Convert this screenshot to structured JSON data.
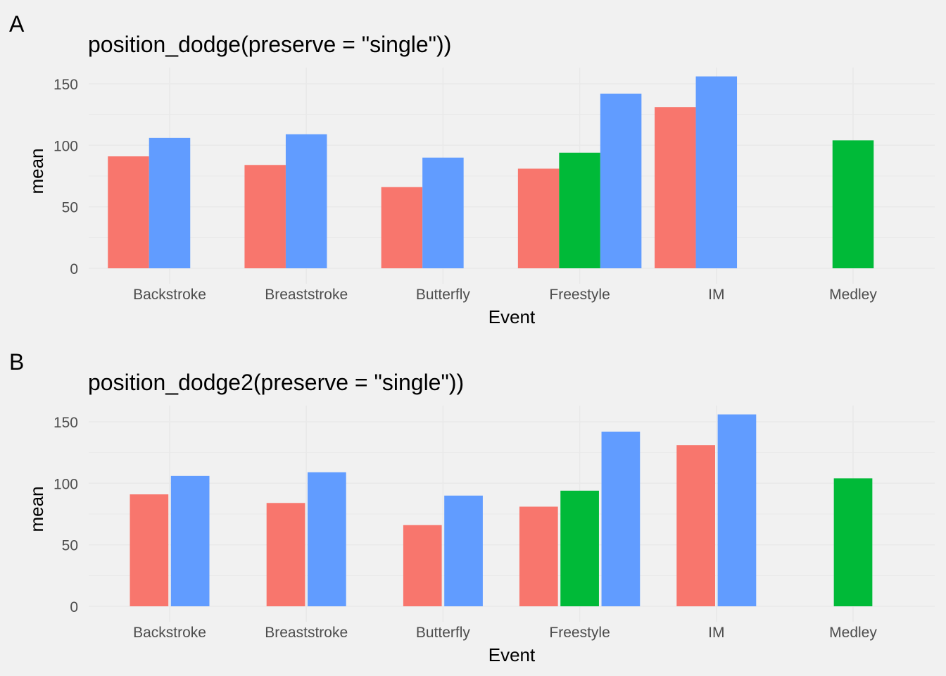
{
  "colors": {
    "background": "#f1f1f1",
    "grid_major": "#ffffff",
    "grid_minor": "#e9e9e9",
    "series": {
      "a": "#F8766D",
      "b": "#00BA38",
      "c": "#619CFF"
    }
  },
  "chart_data": [
    {
      "tag": "A",
      "type": "bar",
      "title": "position_dodge(preserve = \"single\"))",
      "xlabel": "Event",
      "ylabel": "mean",
      "yticks": [
        "0",
        "50",
        "100",
        "150"
      ],
      "ylim": [
        0,
        160
      ],
      "grid": true,
      "legend": "none",
      "dodge": "single",
      "categories": [
        "Backstroke",
        "Breaststroke",
        "Butterfly",
        "Freestyle",
        "IM",
        "Medley"
      ],
      "series": [
        {
          "color": "#F8766D",
          "values": [
            91,
            84,
            66,
            81,
            131,
            null
          ]
        },
        {
          "color": "#00BA38",
          "values": [
            null,
            null,
            null,
            94,
            null,
            104
          ]
        },
        {
          "color": "#619CFF",
          "values": [
            106,
            109,
            90,
            142,
            156,
            null
          ]
        }
      ]
    },
    {
      "tag": "B",
      "type": "bar",
      "title": "position_dodge2(preserve = \"single\"))",
      "xlabel": "Event",
      "ylabel": "mean",
      "yticks": [
        "0",
        "50",
        "100",
        "150"
      ],
      "ylim": [
        0,
        160
      ],
      "grid": true,
      "legend": "none",
      "dodge": "single2",
      "categories": [
        "Backstroke",
        "Breaststroke",
        "Butterfly",
        "Freestyle",
        "IM",
        "Medley"
      ],
      "series": [
        {
          "color": "#F8766D",
          "values": [
            91,
            84,
            66,
            81,
            131,
            null
          ]
        },
        {
          "color": "#00BA38",
          "values": [
            null,
            null,
            null,
            94,
            null,
            104
          ]
        },
        {
          "color": "#619CFF",
          "values": [
            106,
            109,
            90,
            142,
            156,
            null
          ]
        }
      ]
    }
  ]
}
